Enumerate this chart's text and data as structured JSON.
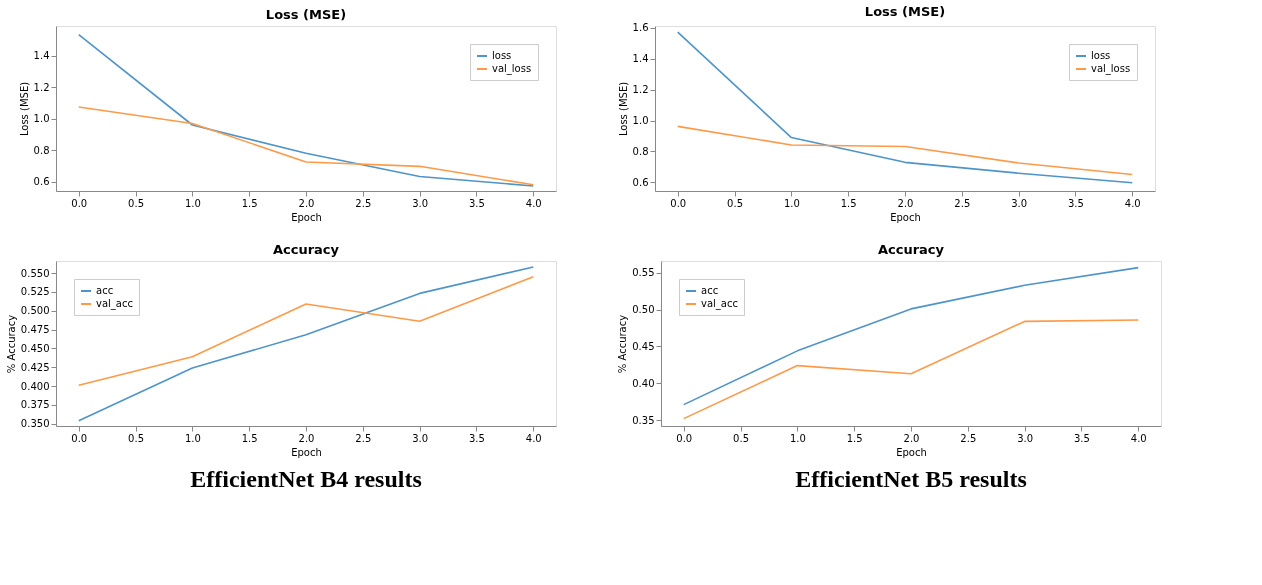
{
  "chart_data": [
    {
      "type": "line",
      "title": "Loss (MSE)",
      "xlabel": "Epoch",
      "ylabel": "Loss (MSE)",
      "x": [
        0,
        1,
        2,
        3,
        4
      ],
      "series": [
        {
          "name": "loss",
          "color": "#4f94c9",
          "values": [
            1.535,
            0.96,
            0.78,
            0.632,
            0.572
          ]
        },
        {
          "name": "val_loss",
          "color": "#fd9a4a",
          "values": [
            1.075,
            0.97,
            0.725,
            0.697,
            0.58
          ]
        }
      ],
      "xlim": [
        -0.2,
        4.2
      ],
      "xticks": [
        {
          "value": 0,
          "label": "0.0"
        },
        0.5,
        {
          "value": 1,
          "label": "1.0"
        },
        1.5,
        {
          "value": 2,
          "label": "2.0"
        },
        2.5,
        {
          "value": 3,
          "label": "3.0"
        },
        3.5,
        {
          "value": 4,
          "label": "4.0"
        }
      ],
      "ylim": [
        0.54,
        1.59
      ],
      "yticks": [
        0.6,
        0.8,
        {
          "value": 1,
          "label": "1.0"
        },
        1.2,
        1.4
      ],
      "grid": false,
      "legend": "top right"
    },
    {
      "type": "line",
      "title": "Loss (MSE)",
      "xlabel": "Epoch",
      "ylabel": "Loss (MSE)",
      "x": [
        0,
        1,
        2,
        3,
        4
      ],
      "series": [
        {
          "name": "loss",
          "color": "#4f94c9",
          "values": [
            1.57,
            0.89,
            0.73,
            0.66,
            0.598
          ]
        },
        {
          "name": "val_loss",
          "color": "#fd9a4a",
          "values": [
            0.962,
            0.842,
            0.832,
            0.726,
            0.652
          ]
        }
      ],
      "xlim": [
        -0.2,
        4.2
      ],
      "xticks": [
        {
          "value": 0,
          "label": "0.0"
        },
        0.5,
        {
          "value": 1,
          "label": "1.0"
        },
        1.5,
        {
          "value": 2,
          "label": "2.0"
        },
        2.5,
        {
          "value": 3,
          "label": "3.0"
        },
        3.5,
        {
          "value": 4,
          "label": "4.0"
        }
      ],
      "ylim": [
        0.545,
        1.61
      ],
      "yticks": [
        0.6,
        0.8,
        {
          "value": 1,
          "label": "1.0"
        },
        1.2,
        1.4,
        1.6
      ],
      "grid": false,
      "legend": "top right"
    },
    {
      "type": "line",
      "title": "Accuracy",
      "xlabel": "Epoch",
      "ylabel": "% Accuracy",
      "x": [
        0,
        1,
        2,
        3,
        4
      ],
      "series": [
        {
          "name": "acc",
          "color": "#4f94c9",
          "values": [
            0.354,
            0.424,
            0.468,
            0.523,
            0.558
          ]
        },
        {
          "name": "val_acc",
          "color": "#fd9a4a",
          "values": [
            0.401,
            0.439,
            0.509,
            0.486,
            0.545
          ]
        }
      ],
      "xlim": [
        -0.2,
        4.2
      ],
      "xticks": [
        {
          "value": 0,
          "label": "0.0"
        },
        0.5,
        {
          "value": 1,
          "label": "1.0"
        },
        1.5,
        {
          "value": 2,
          "label": "2.0"
        },
        2.5,
        {
          "value": 3,
          "label": "3.0"
        },
        3.5,
        {
          "value": 4,
          "label": "4.0"
        }
      ],
      "ylim": [
        0.347,
        0.566
      ],
      "yticks": [
        {
          "value": 0.35,
          "label": "0.350"
        },
        0.375,
        {
          "value": 0.4,
          "label": "0.400"
        },
        0.425,
        {
          "value": 0.45,
          "label": "0.450"
        },
        0.475,
        {
          "value": 0.5,
          "label": "0.500"
        },
        0.525,
        {
          "value": 0.55,
          "label": "0.550"
        }
      ],
      "grid": false,
      "legend": "top left",
      "annotations": [
        "EfficientNet B4 results"
      ]
    },
    {
      "type": "line",
      "title": "Accuracy",
      "xlabel": "Epoch",
      "ylabel": "% Accuracy",
      "x": [
        0,
        1,
        2,
        3,
        4
      ],
      "series": [
        {
          "name": "acc",
          "color": "#4f94c9",
          "values": [
            0.371,
            0.444,
            0.501,
            0.533,
            0.557
          ]
        },
        {
          "name": "val_acc",
          "color": "#fd9a4a",
          "values": [
            0.352,
            0.424,
            0.413,
            0.484,
            0.486
          ]
        }
      ],
      "xlim": [
        -0.2,
        4.2
      ],
      "xticks": [
        {
          "value": 0,
          "label": "0.0"
        },
        0.5,
        {
          "value": 1,
          "label": "1.0"
        },
        1.5,
        {
          "value": 2,
          "label": "2.0"
        },
        2.5,
        {
          "value": 3,
          "label": "3.0"
        },
        3.5,
        {
          "value": 4,
          "label": "4.0"
        }
      ],
      "ylim": [
        0.342,
        0.566
      ],
      "yticks": [
        0.35,
        {
          "value": 0.4,
          "label": "0.40"
        },
        0.45,
        {
          "value": 0.5,
          "label": "0.50"
        },
        0.55
      ],
      "grid": false,
      "legend": "top left",
      "annotations": [
        "EfficientNet B5 results"
      ]
    }
  ]
}
